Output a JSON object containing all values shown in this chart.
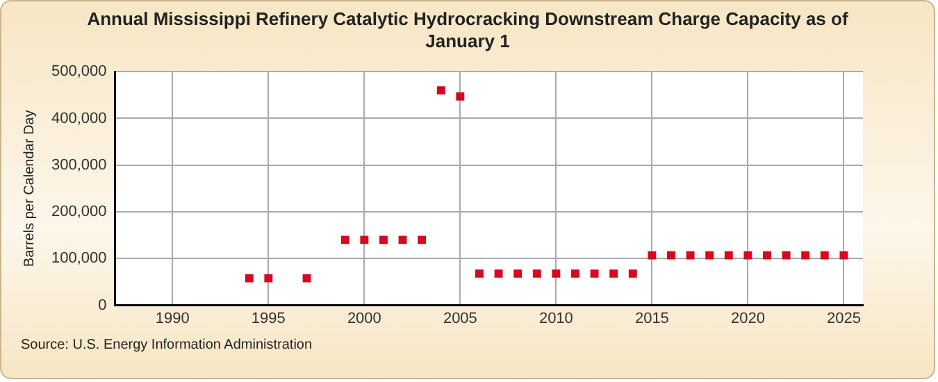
{
  "chart_data": {
    "type": "scatter",
    "title": "Annual Mississippi Refinery Catalytic Hydrocracking Downstream Charge Capacity as of January 1",
    "ylabel": "Barrels per Calendar Day",
    "x": [
      1994,
      1995,
      1997,
      1999,
      2000,
      2001,
      2002,
      2003,
      2004,
      2005,
      2006,
      2007,
      2008,
      2009,
      2010,
      2011,
      2012,
      2013,
      2014,
      2015,
      2016,
      2017,
      2018,
      2019,
      2020,
      2021,
      2022,
      2023,
      2024,
      2025
    ],
    "series": [
      {
        "color": "#d7091f",
        "values": [
          58000,
          58000,
          58000,
          140000,
          140000,
          140000,
          140000,
          140000,
          460000,
          447000,
          68000,
          68000,
          68000,
          68000,
          68000,
          68000,
          68000,
          68000,
          68000,
          107000,
          107000,
          107000,
          107000,
          107000,
          107000,
          107000,
          107000,
          107000,
          107000,
          107000
        ]
      }
    ],
    "xlim": [
      1987,
      2026
    ],
    "xticks": [
      1990,
      1995,
      2000,
      2005,
      2010,
      2015,
      2020,
      2025
    ],
    "ylim": [
      0,
      500000
    ],
    "yticks": [
      0,
      {
        "value": 100000,
        "label": "100,000"
      },
      {
        "value": 200000,
        "label": "200,000"
      },
      {
        "value": 300000,
        "label": "300,000"
      },
      {
        "value": 400000,
        "label": "400,000"
      },
      {
        "value": 500000,
        "label": "500,000"
      }
    ],
    "grid": true,
    "legend": false,
    "marker": "square",
    "annotations": [
      "Source: U.S. Energy Information Administration"
    ]
  }
}
